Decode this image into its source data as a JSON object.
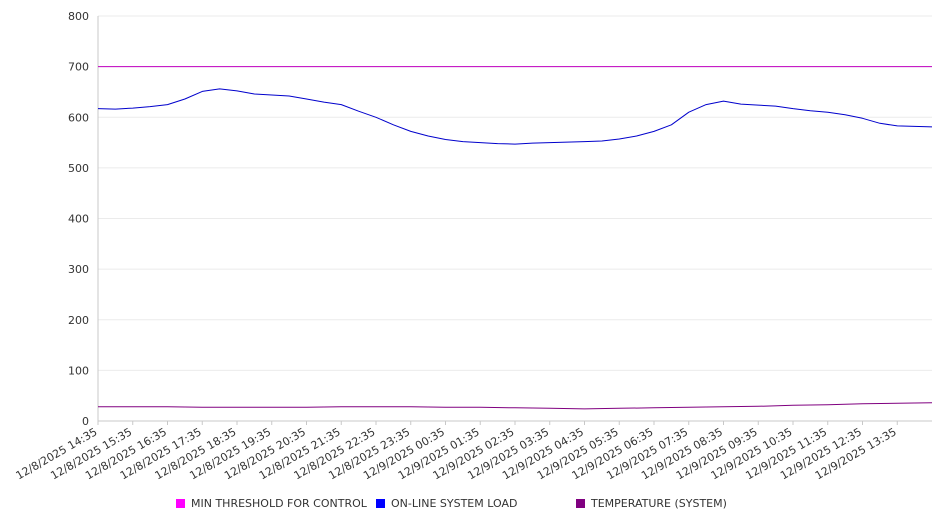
{
  "chart_data": {
    "type": "line",
    "ylim": [
      0,
      800
    ],
    "y_ticks": [
      0,
      100,
      200,
      300,
      400,
      500,
      600,
      700,
      800
    ],
    "grid": true,
    "legend_position": "bottom",
    "x_labels": [
      "12/8/2025 14:35",
      "12/8/2025 15:35",
      "12/8/2025 16:35",
      "12/8/2025 17:35",
      "12/8/2025 18:35",
      "12/8/2025 19:35",
      "12/8/2025 20:35",
      "12/8/2025 21:35",
      "12/8/2025 22:35",
      "12/8/2025 23:35",
      "12/9/2025 00:35",
      "12/9/2025 01:35",
      "12/9/2025 02:35",
      "12/9/2025 03:35",
      "12/9/2025 04:35",
      "12/9/2025 05:35",
      "12/9/2025 06:35",
      "12/9/2025 07:35",
      "12/9/2025 08:35",
      "12/9/2025 09:35",
      "12/9/2025 10:35",
      "12/9/2025 11:35",
      "12/9/2025 12:35",
      "12/9/2025 13:35"
    ],
    "x_end": "12/9/2025 14:35",
    "series": [
      {
        "name": "MIN THRESHOLD FOR CONTROL",
        "color": "#c000c0",
        "points": [
          [
            "12/8/2025 14:35",
            700
          ],
          [
            "12/9/2025 14:35",
            700
          ]
        ]
      },
      {
        "name": "ON-LINE SYSTEM LOAD",
        "color": "#0000cc",
        "points": [
          [
            "12/8/2025 14:35",
            617
          ],
          [
            "12/8/2025 15:05",
            616
          ],
          [
            "12/8/2025 15:35",
            618
          ],
          [
            "12/8/2025 16:05",
            621
          ],
          [
            "12/8/2025 16:35",
            625
          ],
          [
            "12/8/2025 17:05",
            636
          ],
          [
            "12/8/2025 17:35",
            651
          ],
          [
            "12/8/2025 18:05",
            656
          ],
          [
            "12/8/2025 18:35",
            652
          ],
          [
            "12/8/2025 19:05",
            646
          ],
          [
            "12/8/2025 19:35",
            644
          ],
          [
            "12/8/2025 20:05",
            642
          ],
          [
            "12/8/2025 20:35",
            636
          ],
          [
            "12/8/2025 21:05",
            630
          ],
          [
            "12/8/2025 21:35",
            625
          ],
          [
            "12/8/2025 22:05",
            612
          ],
          [
            "12/8/2025 22:35",
            600
          ],
          [
            "12/8/2025 23:05",
            585
          ],
          [
            "12/8/2025 23:35",
            572
          ],
          [
            "12/9/2025 00:05",
            563
          ],
          [
            "12/9/2025 00:35",
            556
          ],
          [
            "12/9/2025 01:05",
            552
          ],
          [
            "12/9/2025 01:35",
            550
          ],
          [
            "12/9/2025 02:05",
            548
          ],
          [
            "12/9/2025 02:35",
            547
          ],
          [
            "12/9/2025 03:05",
            549
          ],
          [
            "12/9/2025 03:35",
            550
          ],
          [
            "12/9/2025 04:05",
            551
          ],
          [
            "12/9/2025 04:35",
            552
          ],
          [
            "12/9/2025 05:05",
            553
          ],
          [
            "12/9/2025 05:35",
            557
          ],
          [
            "12/9/2025 06:05",
            563
          ],
          [
            "12/9/2025 06:35",
            572
          ],
          [
            "12/9/2025 07:05",
            585
          ],
          [
            "12/9/2025 07:35",
            610
          ],
          [
            "12/9/2025 08:05",
            625
          ],
          [
            "12/9/2025 08:35",
            632
          ],
          [
            "12/9/2025 09:05",
            626
          ],
          [
            "12/9/2025 09:35",
            624
          ],
          [
            "12/9/2025 10:05",
            622
          ],
          [
            "12/9/2025 10:35",
            617
          ],
          [
            "12/9/2025 11:05",
            613
          ],
          [
            "12/9/2025 11:35",
            610
          ],
          [
            "12/9/2025 12:05",
            605
          ],
          [
            "12/9/2025 12:35",
            598
          ],
          [
            "12/9/2025 13:05",
            588
          ],
          [
            "12/9/2025 13:35",
            583
          ],
          [
            "12/9/2025 14:05",
            582
          ],
          [
            "12/9/2025 14:35",
            581
          ]
        ]
      },
      {
        "name": "TEMPERATURE (SYSTEM)",
        "color": "#800080",
        "points": [
          [
            "12/8/2025 14:35",
            28
          ],
          [
            "12/8/2025 16:35",
            28
          ],
          [
            "12/8/2025 17:35",
            27
          ],
          [
            "12/8/2025 20:35",
            27
          ],
          [
            "12/8/2025 21:35",
            28
          ],
          [
            "12/8/2025 23:35",
            28
          ],
          [
            "12/9/2025 00:35",
            27
          ],
          [
            "12/9/2025 01:35",
            27
          ],
          [
            "12/9/2025 02:35",
            26
          ],
          [
            "12/9/2025 03:35",
            25
          ],
          [
            "12/9/2025 04:35",
            24
          ],
          [
            "12/9/2025 05:35",
            25
          ],
          [
            "12/9/2025 06:35",
            26
          ],
          [
            "12/9/2025 07:35",
            27
          ],
          [
            "12/9/2025 08:35",
            28
          ],
          [
            "12/9/2025 09:35",
            29
          ],
          [
            "12/9/2025 10:35",
            31
          ],
          [
            "12/9/2025 11:35",
            32
          ],
          [
            "12/9/2025 12:35",
            34
          ],
          [
            "12/9/2025 13:35",
            35
          ],
          [
            "12/9/2025 14:35",
            36
          ]
        ]
      }
    ],
    "legend": [
      {
        "label": "MIN THRESHOLD FOR CONTROL",
        "color": "#ff00ff"
      },
      {
        "label": "ON-LINE SYSTEM LOAD",
        "color": "#0000ff"
      },
      {
        "label": "TEMPERATURE (SYSTEM)",
        "color": "#800080"
      }
    ]
  }
}
